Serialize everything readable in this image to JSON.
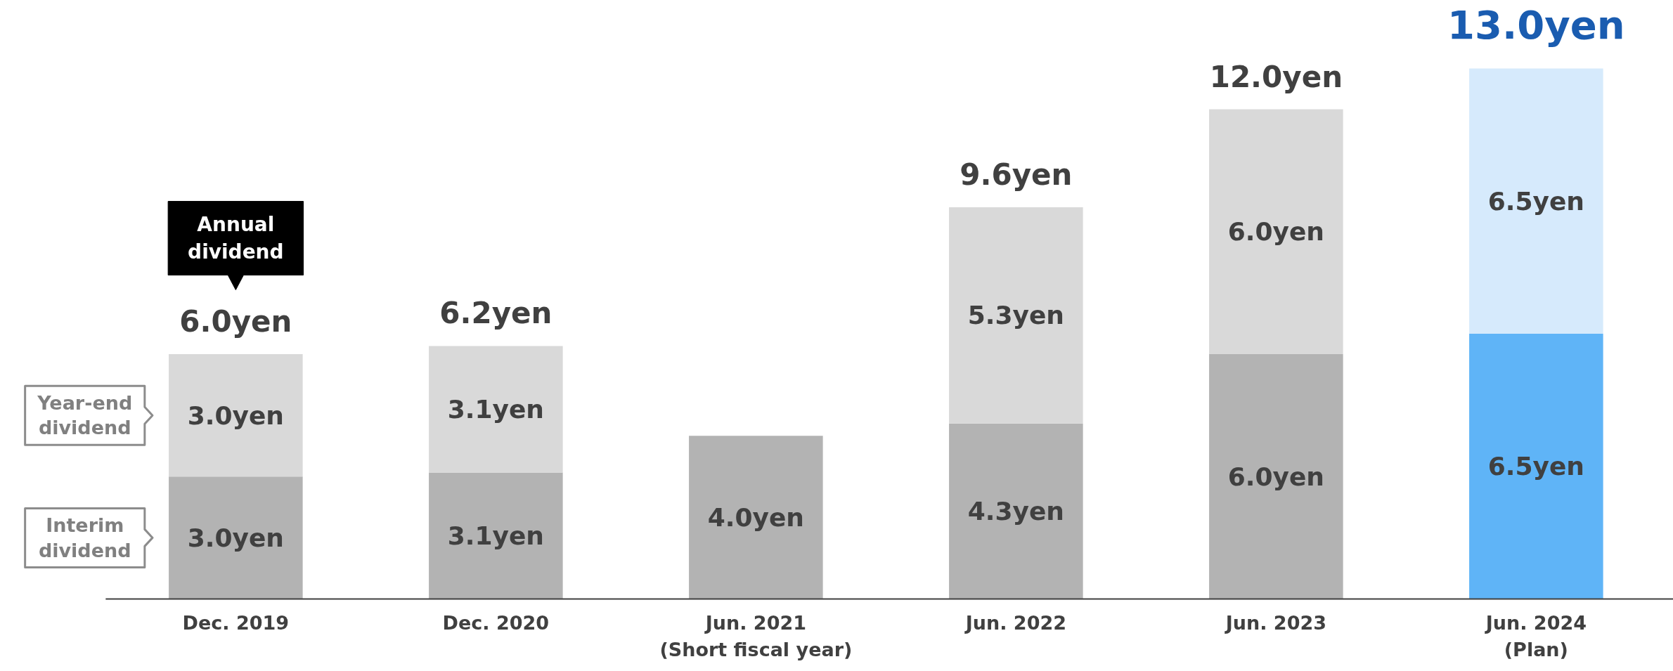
{
  "chart_data": {
    "type": "bar",
    "stacked": true,
    "data_labels": false,
    "categories": [
      "Dec. 2019",
      "Dec. 2020",
      "Jun. 2021\n(Short fiscal year)",
      "Jun. 2022",
      "Jun. 2023",
      "Jun. 2024\n(Plan)"
    ],
    "series": [
      {
        "name": "Interim dividend",
        "colors": [
          "#b3b3b3",
          "#b3b3b3",
          "#b3b3b3",
          "#b3b3b3",
          "#b3b3b3",
          "#5fb4f7"
        ],
        "values": [
          3.0,
          3.1,
          4.0,
          4.3,
          6.0,
          6.5
        ],
        "value_labels": [
          "3.0yen",
          "3.1yen",
          "4.0yen",
          "4.3yen",
          "6.0yen",
          "6.5yen"
        ]
      },
      {
        "name": "Year-end dividend",
        "colors": [
          "#d9d9d9",
          "#d9d9d9",
          "#d9d9d9",
          "#d9d9d9",
          "#d9d9d9",
          "#d6eafc"
        ],
        "values": [
          3.0,
          3.1,
          null,
          5.3,
          6.0,
          6.5
        ],
        "value_labels": [
          "3.0yen",
          "3.1yen",
          null,
          "5.3yen",
          "6.0yen",
          "6.5yen"
        ]
      }
    ],
    "totals": [
      "6.0yen",
      "6.2yen",
      null,
      "9.6yen",
      "12.0yen",
      "13.0yen"
    ],
    "annotations": [
      "Annual\ndividend"
    ]
  }
}
